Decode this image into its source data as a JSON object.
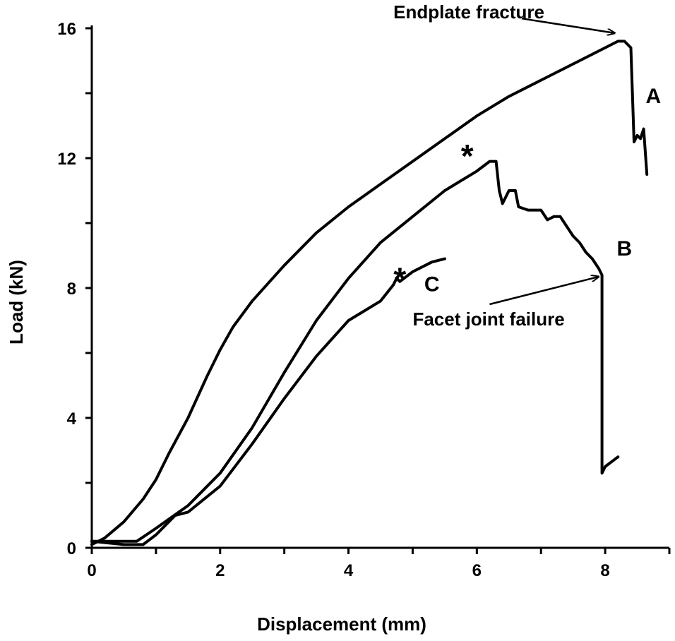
{
  "chart_data": {
    "type": "line",
    "title": "",
    "xlabel": "Displacement (mm)",
    "ylabel": "Load (kN)",
    "xlim": [
      0,
      9
    ],
    "ylim": [
      0,
      16
    ],
    "xticks": [
      0,
      2,
      4,
      6,
      8
    ],
    "yticks": [
      0,
      4,
      8,
      12,
      16
    ],
    "grid": false,
    "series": [
      {
        "name": "A",
        "points": [
          [
            0,
            0.1
          ],
          [
            0.2,
            0.3
          ],
          [
            0.5,
            0.8
          ],
          [
            0.8,
            1.5
          ],
          [
            1.0,
            2.1
          ],
          [
            1.2,
            2.9
          ],
          [
            1.5,
            4.0
          ],
          [
            1.8,
            5.3
          ],
          [
            2.0,
            6.1
          ],
          [
            2.2,
            6.8
          ],
          [
            2.5,
            7.6
          ],
          [
            3.0,
            8.7
          ],
          [
            3.5,
            9.7
          ],
          [
            4.0,
            10.5
          ],
          [
            4.5,
            11.2
          ],
          [
            5.0,
            11.9
          ],
          [
            5.5,
            12.6
          ],
          [
            6.0,
            13.3
          ],
          [
            6.5,
            13.9
          ],
          [
            7.0,
            14.4
          ],
          [
            7.5,
            14.9
          ],
          [
            8.0,
            15.4
          ],
          [
            8.2,
            15.6
          ],
          [
            8.3,
            15.6
          ],
          [
            8.4,
            15.4
          ],
          [
            8.45,
            12.5
          ],
          [
            8.5,
            12.7
          ],
          [
            8.55,
            12.6
          ],
          [
            8.6,
            12.9
          ],
          [
            8.65,
            11.5
          ]
        ]
      },
      {
        "name": "B",
        "points": [
          [
            0,
            0.2
          ],
          [
            0.5,
            0.2
          ],
          [
            0.7,
            0.2
          ],
          [
            1.0,
            0.6
          ],
          [
            1.5,
            1.3
          ],
          [
            2.0,
            2.3
          ],
          [
            2.5,
            3.7
          ],
          [
            3.0,
            5.4
          ],
          [
            3.5,
            7.0
          ],
          [
            4.0,
            8.3
          ],
          [
            4.5,
            9.4
          ],
          [
            5.0,
            10.2
          ],
          [
            5.5,
            11.0
          ],
          [
            6.0,
            11.6
          ],
          [
            6.2,
            11.9
          ],
          [
            6.3,
            11.9
          ],
          [
            6.35,
            11.0
          ],
          [
            6.4,
            10.6
          ],
          [
            6.5,
            11.0
          ],
          [
            6.6,
            11.0
          ],
          [
            6.65,
            10.5
          ],
          [
            6.8,
            10.4
          ],
          [
            7.0,
            10.4
          ],
          [
            7.1,
            10.1
          ],
          [
            7.2,
            10.2
          ],
          [
            7.3,
            10.2
          ],
          [
            7.4,
            9.9
          ],
          [
            7.5,
            9.6
          ],
          [
            7.6,
            9.4
          ],
          [
            7.7,
            9.1
          ],
          [
            7.8,
            8.9
          ],
          [
            7.9,
            8.6
          ],
          [
            7.95,
            8.4
          ],
          [
            7.95,
            2.3
          ],
          [
            8.0,
            2.5
          ],
          [
            8.2,
            2.8
          ]
        ]
      },
      {
        "name": "C",
        "points": [
          [
            0,
            0.2
          ],
          [
            0.5,
            0.1
          ],
          [
            0.8,
            0.1
          ],
          [
            1.0,
            0.4
          ],
          [
            1.3,
            1.0
          ],
          [
            1.5,
            1.1
          ],
          [
            2.0,
            1.9
          ],
          [
            2.5,
            3.2
          ],
          [
            3.0,
            4.6
          ],
          [
            3.5,
            5.9
          ],
          [
            4.0,
            7.0
          ],
          [
            4.5,
            7.6
          ],
          [
            4.7,
            8.1
          ],
          [
            4.75,
            8.3
          ],
          [
            4.8,
            8.2
          ],
          [
            5.0,
            8.5
          ],
          [
            5.3,
            8.8
          ],
          [
            5.5,
            8.9
          ]
        ]
      }
    ],
    "curve_labels": [
      {
        "text": "A",
        "x": 8.75,
        "y": 13.7
      },
      {
        "text": "B",
        "x": 8.3,
        "y": 9.0
      },
      {
        "text": "C",
        "x": 5.3,
        "y": 7.9
      }
    ],
    "stars": [
      {
        "text": "*",
        "x": 5.85,
        "y": 12.2
      },
      {
        "text": "*",
        "x": 4.8,
        "y": 8.4
      }
    ],
    "annotations": [
      {
        "text": "Endplate fracture",
        "text_x": 4.7,
        "text_y": 16.3,
        "tail_x": 6.7,
        "tail_y": 16.3,
        "head_x": 8.15,
        "head_y": 15.85
      },
      {
        "text": "Facet joint failure",
        "text_x": 5.0,
        "text_y": 6.85,
        "tail_x": 6.2,
        "tail_y": 7.5,
        "head_x": 7.9,
        "head_y": 8.35
      }
    ]
  }
}
